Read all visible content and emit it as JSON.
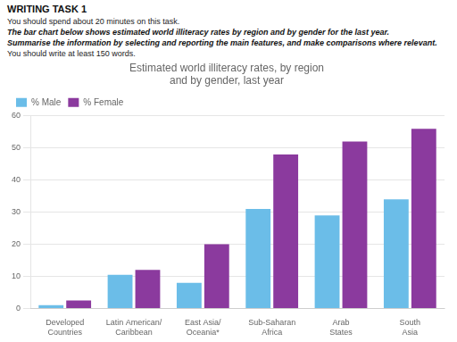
{
  "chart_data": {
    "type": "bar",
    "title": "Estimated world illiteracy rates, by region\nand by gender, last year",
    "annotations": [
      "WRITING TASK 1",
      "You should spend about 20 minutes on this task.",
      "The bar chart below shows estimated world illiteracy rates by region and by gender for the last year.",
      "Summarise the information by selecting and reporting the main features, and make comparisons where relevant.",
      "You should write at least 150 words."
    ],
    "categories": [
      "Developed\nCountries",
      "Latin American/\nCaribbean",
      "East Asia/\nOceania*",
      "Sub-Saharan\nAfrica",
      "Arab\nStates",
      "South\nAsia"
    ],
    "series": [
      {
        "name": "% Male",
        "color": "#6bbde8",
        "values": [
          1,
          10.5,
          8,
          31,
          29,
          34
        ]
      },
      {
        "name": "% Female",
        "color": "#8b3a9e",
        "values": [
          2.5,
          12,
          20,
          48,
          52,
          56
        ]
      }
    ],
    "ylim": [
      0,
      60
    ],
    "yticks": [
      0,
      10,
      20,
      30,
      40,
      50,
      60
    ],
    "grid": true,
    "legend": "upper left"
  }
}
